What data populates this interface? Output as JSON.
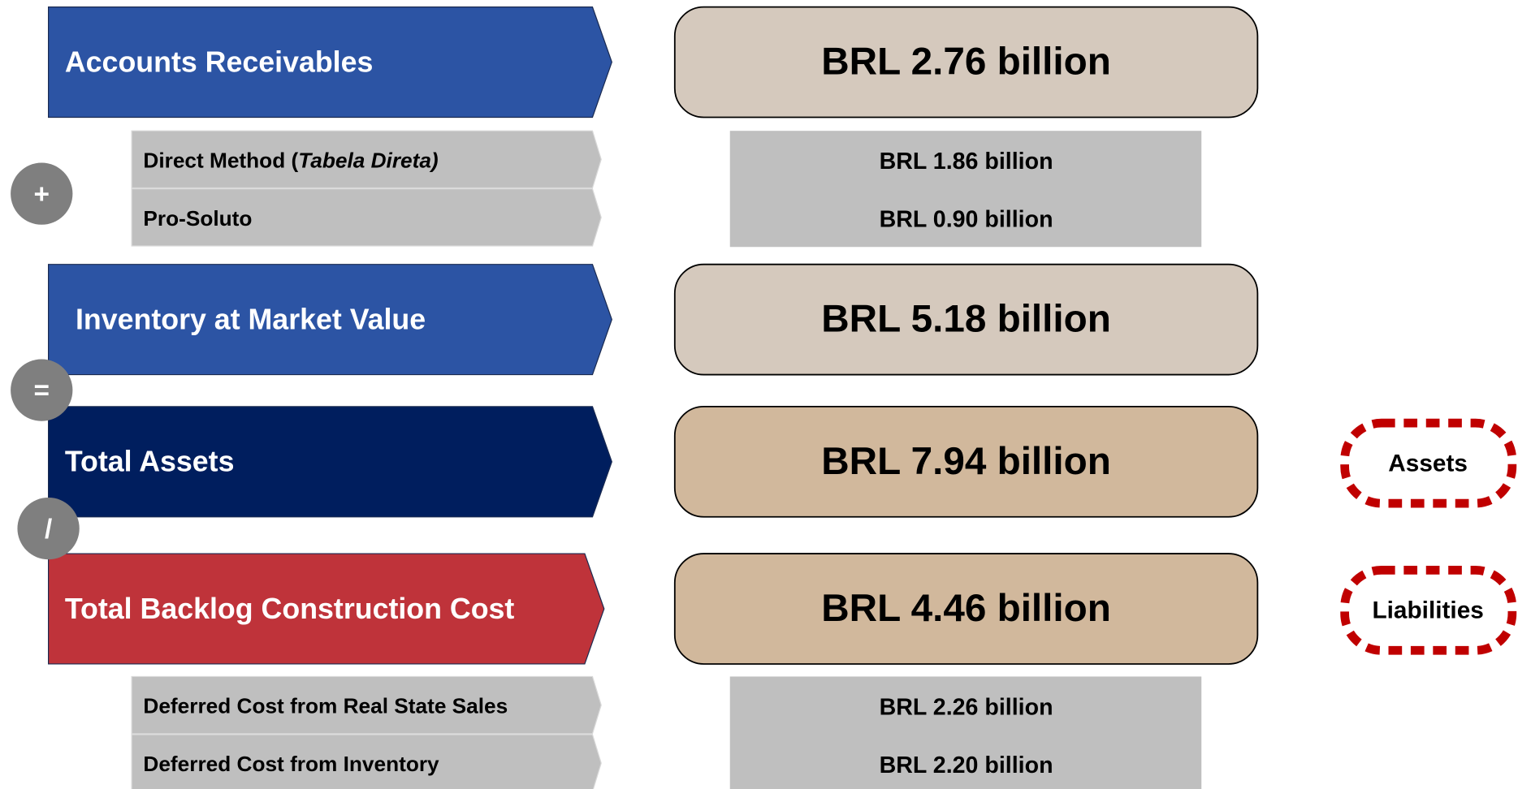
{
  "rows": [
    {
      "label": "Accounts Receivables",
      "value": "BRL 2.76 billion",
      "style": "blue",
      "items": [
        {
          "label": "Direct Method (",
          "label_italic": "Tabela Direta)",
          "value": "BRL 1.86 billion"
        },
        {
          "label": "Pro-Soluto",
          "value": "BRL 0.90 billion"
        }
      ]
    },
    {
      "label": "Inventory at Market Value",
      "value": "BRL 5.18 billion",
      "style": "blue"
    },
    {
      "label": "Total Assets",
      "value": "BRL 7.94 billion",
      "style": "navy",
      "tag": "Assets"
    },
    {
      "label": "Total Backlog Construction Cost",
      "value": "BRL 4.46 billion",
      "style": "red",
      "tag": "Liabilities",
      "items": [
        {
          "label": "Deferred Cost from Real State Sales",
          "value": "BRL 2.26 billion"
        },
        {
          "label": "Deferred Cost from Inventory",
          "value": "BRL 2.20 billion"
        }
      ]
    }
  ],
  "operators": [
    "+",
    "=",
    "/"
  ]
}
